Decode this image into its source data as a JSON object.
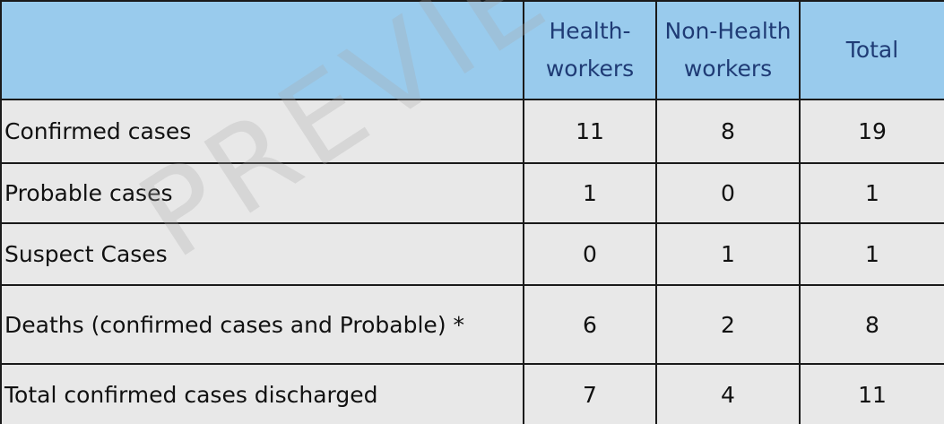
{
  "header": {
    "empty": "",
    "health_workers": [
      "Health-",
      "workers"
    ],
    "non_health_workers": [
      "Non-Health",
      "workers"
    ],
    "total": "Total"
  },
  "rows": [
    {
      "label": "Confirmed cases",
      "health": "11",
      "non_health": "8",
      "total": "19"
    },
    {
      "label": "Probable cases",
      "health": "1",
      "non_health": "0",
      "total": "1"
    },
    {
      "label": "Suspect Cases",
      "health": "0",
      "non_health": "1",
      "total": "1"
    },
    {
      "label": "Deaths  (confirmed cases and Probable) *",
      "health": "6",
      "non_health": "2",
      "total": "8"
    },
    {
      "label": "Total confirmed cases  discharged",
      "health": "7",
      "non_health": "4",
      "total": "11"
    }
  ],
  "watermark": "PREVIEW",
  "colors": {
    "header_bg": "#99cbed",
    "header_text": "#1f3b75",
    "body_bg": "#e8e8e8"
  }
}
